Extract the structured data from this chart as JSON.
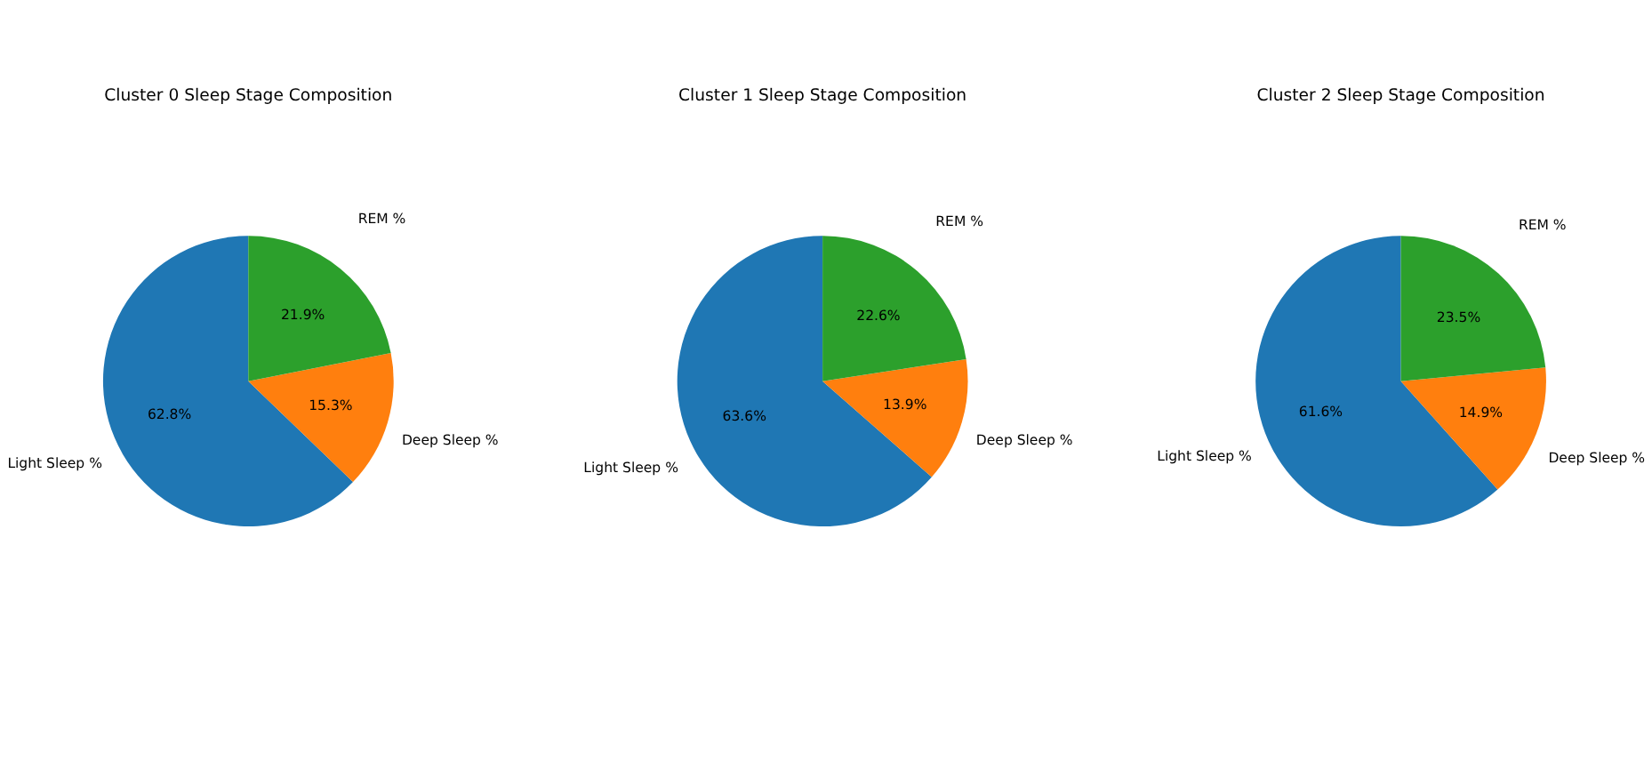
{
  "chart_data": [
    {
      "type": "pie",
      "title": "Cluster 0 Sleep Stage Composition",
      "categories": [
        "Light Sleep %",
        "Deep Sleep %",
        "REM %"
      ],
      "values": [
        62.8,
        15.3,
        21.9
      ],
      "value_labels": [
        "62.8%",
        "15.3%",
        "21.9%"
      ],
      "colors": [
        "#1f77b4",
        "#ff7f0e",
        "#2ca02c"
      ]
    },
    {
      "type": "pie",
      "title": "Cluster 1 Sleep Stage Composition",
      "categories": [
        "Light Sleep %",
        "Deep Sleep %",
        "REM %"
      ],
      "values": [
        63.6,
        13.9,
        22.6
      ],
      "value_labels": [
        "63.6%",
        "13.9%",
        "22.6%"
      ],
      "colors": [
        "#1f77b4",
        "#ff7f0e",
        "#2ca02c"
      ]
    },
    {
      "type": "pie",
      "title": "Cluster 2 Sleep Stage Composition",
      "categories": [
        "Light Sleep %",
        "Deep Sleep %",
        "REM %"
      ],
      "values": [
        61.6,
        14.9,
        23.5
      ],
      "value_labels": [
        "61.6%",
        "14.9%",
        "23.5%"
      ],
      "colors": [
        "#1f77b4",
        "#ff7f0e",
        "#2ca02c"
      ]
    }
  ]
}
